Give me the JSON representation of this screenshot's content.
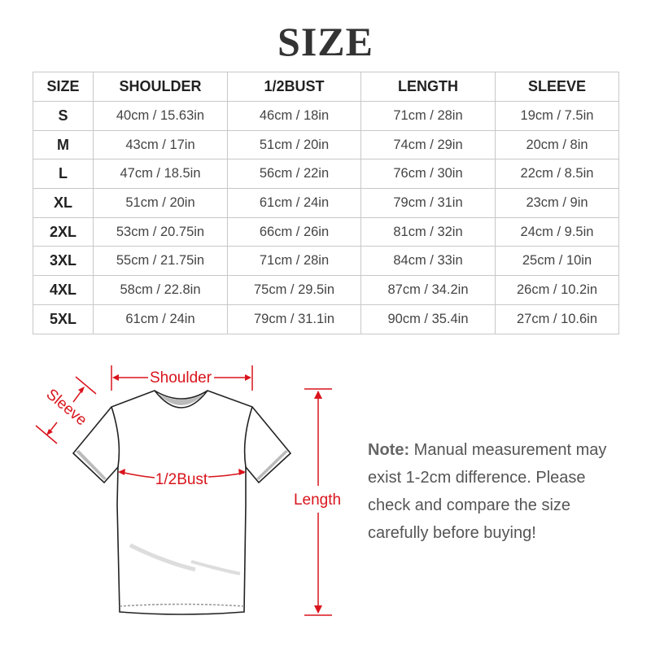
{
  "title": "SIZE",
  "table": {
    "headers": [
      "SIZE",
      "SHOULDER",
      "1/2BUST",
      "LENGTH",
      "SLEEVE"
    ],
    "rows": [
      [
        "S",
        "40cm / 15.63in",
        "46cm / 18in",
        "71cm / 28in",
        "19cm / 7.5in"
      ],
      [
        "M",
        "43cm / 17in",
        "51cm / 20in",
        "74cm / 29in",
        "20cm / 8in"
      ],
      [
        "L",
        "47cm / 18.5in",
        "56cm / 22in",
        "76cm / 30in",
        "22cm / 8.5in"
      ],
      [
        "XL",
        "51cm / 20in",
        "61cm / 24in",
        "79cm / 31in",
        "23cm / 9in"
      ],
      [
        "2XL",
        "53cm / 20.75in",
        "66cm / 26in",
        "81cm / 32in",
        "24cm / 9.5in"
      ],
      [
        "3XL",
        "55cm / 21.75in",
        "71cm / 28in",
        "84cm / 33in",
        "25cm / 10in"
      ],
      [
        "4XL",
        "58cm / 22.8in",
        "75cm / 29.5in",
        "87cm / 34.2in",
        "26cm / 10.2in"
      ],
      [
        "5XL",
        "61cm / 24in",
        "79cm / 31.1in",
        "90cm / 35.4in",
        "27cm / 10.6in"
      ]
    ]
  },
  "diagram": {
    "shoulder": "Shoulder",
    "sleeve": "Sleeve",
    "bust": "1/2Bust",
    "length": "Length",
    "accent": "#d9141c"
  },
  "note": {
    "label": "Note:",
    "text": " Manual measurement may exist 1-2cm difference. Please check and compare the size carefully before buying!"
  }
}
